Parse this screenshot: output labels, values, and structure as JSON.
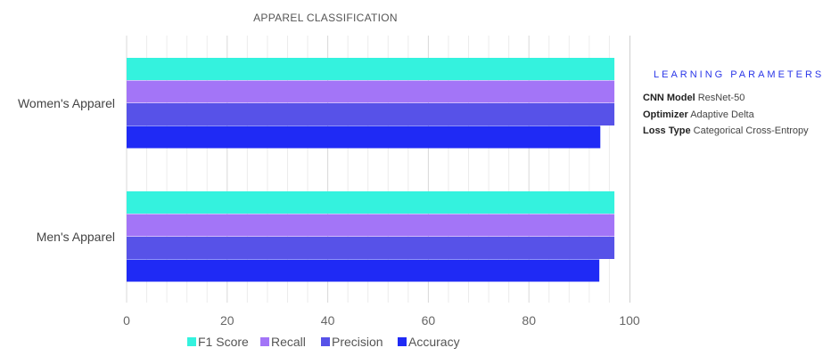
{
  "chart_data": {
    "type": "bar",
    "orientation": "horizontal",
    "title": "APPAREL CLASSIFICATION",
    "categories": [
      "Women's Apparel",
      "Men's Apparel"
    ],
    "series": [
      {
        "name": "F1 Score",
        "color": "#34f2de",
        "values": [
          97,
          97
        ]
      },
      {
        "name": "Recall",
        "color": "#a375f7",
        "values": [
          97,
          97
        ]
      },
      {
        "name": "Precision",
        "color": "#5752e8",
        "values": [
          97,
          97
        ]
      },
      {
        "name": "Accuracy",
        "color": "#1f2af5",
        "values": [
          94.2,
          94
        ]
      }
    ],
    "xlim": [
      0,
      100
    ],
    "xticks": [
      0,
      20,
      40,
      60,
      80,
      100
    ],
    "grid": true,
    "legend_position": "bottom"
  },
  "panel": {
    "title": "LEARNING PARAMETERS",
    "params": [
      {
        "key": "CNN Model",
        "value": "ResNet-50"
      },
      {
        "key": "Optimizer",
        "value": "Adaptive Delta"
      },
      {
        "key": "Loss Type",
        "value": "Categorical Cross-Entropy"
      }
    ]
  }
}
